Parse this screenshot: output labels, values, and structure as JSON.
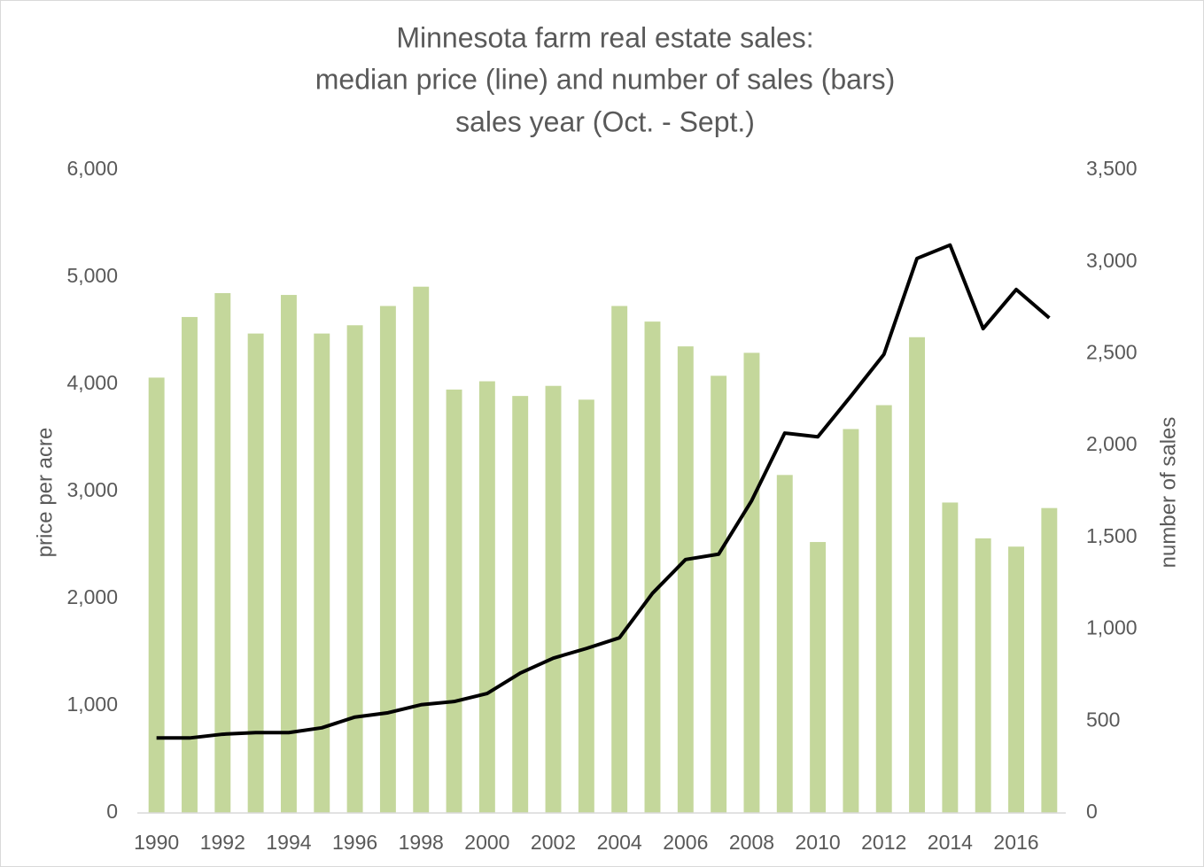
{
  "chart_data": {
    "type": "combo",
    "title": [
      "Minnesota farm real estate sales:",
      "median price (line) and number of sales (bars)",
      "sales year (Oct. - Sept.)"
    ],
    "y_label": "price per acre",
    "y2_label": "number of sales",
    "categories": [
      "1990",
      null,
      "1992",
      null,
      "1994",
      null,
      "1996",
      null,
      "1998",
      null,
      "2000",
      null,
      "2002",
      null,
      "2004",
      null,
      "2006",
      null,
      "2008",
      null,
      "2010",
      null,
      "2012",
      null,
      "2014",
      null,
      "2016",
      null
    ],
    "series": [
      {
        "type": "bar",
        "axis": "y2",
        "color": "#c4d79b",
        "values": [
          2370,
          2700,
          2830,
          2610,
          2820,
          2610,
          2655,
          2760,
          2865,
          2305,
          2350,
          2270,
          2325,
          2250,
          2760,
          2675,
          2540,
          2380,
          2505,
          1840,
          1475,
          2090,
          2220,
          2590,
          1690,
          1495,
          1450,
          1660
        ]
      },
      {
        "type": "line",
        "axis": "y",
        "color": "#000000",
        "values": [
          700,
          700,
          735,
          750,
          750,
          795,
          895,
          935,
          1010,
          1040,
          1115,
          1305,
          1445,
          1535,
          1635,
          2050,
          2365,
          2415,
          2915,
          3545,
          3510,
          3890,
          4280,
          5175,
          5300,
          4520,
          4885,
          4620
        ]
      }
    ],
    "ylim": [
      0,
      6000
    ],
    "yticks": [
      0,
      {
        "value": 1000,
        "label": "1,000"
      },
      {
        "value": 2000,
        "label": "2,000"
      },
      {
        "value": 3000,
        "label": "3,000"
      },
      {
        "value": 4000,
        "label": "4,000"
      },
      {
        "value": 5000,
        "label": "5,000"
      },
      {
        "value": 6000,
        "label": "6,000"
      }
    ],
    "y2lim": [
      0,
      3500
    ],
    "y2ticks": [
      0,
      500,
      {
        "value": 1000,
        "label": "1,000"
      },
      {
        "value": 1500,
        "label": "1,500"
      },
      {
        "value": 2000,
        "label": "2,000"
      },
      {
        "value": 2500,
        "label": "2,500"
      },
      {
        "value": 3000,
        "label": "3,000"
      },
      {
        "value": 3500,
        "label": "3,500"
      }
    ],
    "grid": false
  }
}
